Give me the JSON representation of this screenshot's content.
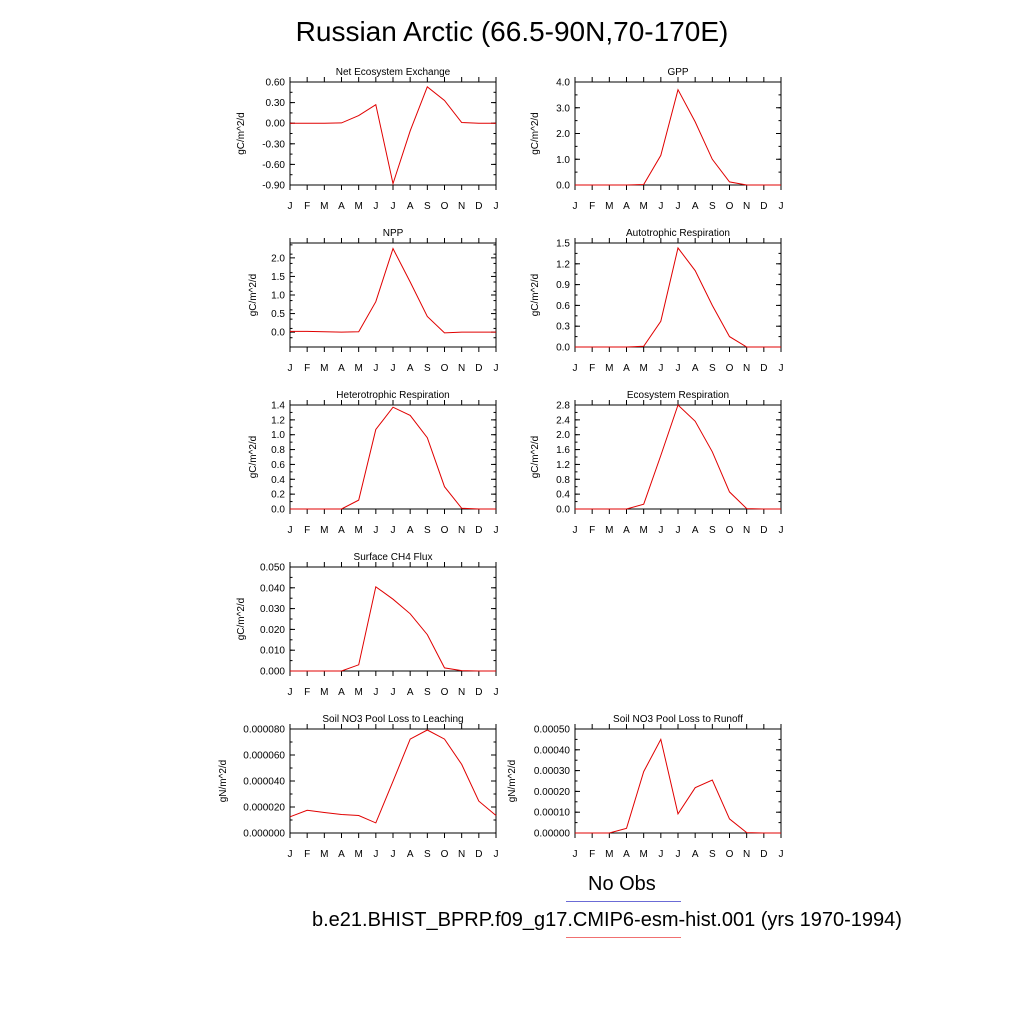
{
  "page_title": "Russian Arctic (66.5-90N,70-170E)",
  "months": [
    "J",
    "F",
    "M",
    "A",
    "M",
    "J",
    "J",
    "A",
    "S",
    "O",
    "N",
    "D",
    "J"
  ],
  "legend": {
    "items": [
      {
        "label": "No Obs",
        "color": "#6b6bd6"
      },
      {
        "label": "b.e21.BHIST_BPRP.f09_g17.CMIP6-esm-hist.001 (yrs 1970-1994)",
        "color": "#f07070"
      }
    ]
  },
  "line_color": "#e00000",
  "chart_data": [
    {
      "type": "line",
      "title": "Net Ecosystem Exchange",
      "ylabel": "gC/m^2/d",
      "ylim": [
        -0.9,
        0.6
      ],
      "yticks": [
        "0.60",
        "0.30",
        "0.00",
        "-0.30",
        "-0.60",
        "-0.90"
      ],
      "ytick_values": [
        0.6,
        0.3,
        0.0,
        -0.3,
        -0.6,
        -0.9
      ],
      "values": [
        0.0,
        0.0,
        0.0,
        0.005,
        0.11,
        0.27,
        -0.88,
        -0.11,
        0.53,
        0.33,
        0.01,
        0.0,
        0.0
      ]
    },
    {
      "type": "line",
      "title": "GPP",
      "ylabel": "gC/m^2/d",
      "ylim": [
        0,
        4.0
      ],
      "yticks": [
        "4.0",
        "3.0",
        "2.0",
        "1.0",
        "0.0"
      ],
      "ytick_values": [
        4.0,
        3.0,
        2.0,
        1.0,
        0.0
      ],
      "values": [
        0,
        0,
        0,
        0,
        0.02,
        1.15,
        3.7,
        2.45,
        1.0,
        0.12,
        0,
        0,
        0
      ]
    },
    {
      "type": "line",
      "title": "NPP",
      "ylabel": "gC/m^2/d",
      "ylim": [
        -0.4,
        2.4
      ],
      "yticks": [
        "2.0",
        "1.5",
        "1.0",
        "0.5",
        "0.0"
      ],
      "ytick_values": [
        2.0,
        1.5,
        1.0,
        0.5,
        0.0
      ],
      "values": [
        0.02,
        0.02,
        0.01,
        0.0,
        0.01,
        0.82,
        2.25,
        1.35,
        0.42,
        -0.02,
        0.0,
        0.0,
        0.0
      ]
    },
    {
      "type": "line",
      "title": "Autotrophic Respiration",
      "ylabel": "gC/m^2/d",
      "ylim": [
        0,
        1.5
      ],
      "yticks": [
        "1.5",
        "1.2",
        "0.9",
        "0.6",
        "0.3",
        "0.0"
      ],
      "ytick_values": [
        1.5,
        1.2,
        0.9,
        0.6,
        0.3,
        0.0
      ],
      "values": [
        0,
        0,
        0,
        0,
        0.01,
        0.37,
        1.43,
        1.1,
        0.6,
        0.15,
        0,
        0,
        0
      ]
    },
    {
      "type": "line",
      "title": "Heterotrophic Respiration",
      "ylabel": "gC/m^2/d",
      "ylim": [
        0,
        1.4
      ],
      "yticks": [
        "1.4",
        "1.2",
        "1.0",
        "0.8",
        "0.6",
        "0.4",
        "0.2",
        "0.0"
      ],
      "ytick_values": [
        1.4,
        1.2,
        1.0,
        0.8,
        0.6,
        0.4,
        0.2,
        0.0
      ],
      "values": [
        0,
        0,
        0,
        0,
        0.12,
        1.07,
        1.37,
        1.26,
        0.96,
        0.3,
        0.01,
        0,
        0
      ]
    },
    {
      "type": "line",
      "title": "Ecosystem Respiration",
      "ylabel": "gC/m^2/d",
      "ylim": [
        0,
        2.8
      ],
      "yticks": [
        "2.8",
        "2.4",
        "2.0",
        "1.6",
        "1.2",
        "0.8",
        "0.4",
        "0.0"
      ],
      "ytick_values": [
        2.8,
        2.4,
        2.0,
        1.6,
        1.2,
        0.8,
        0.4,
        0.0
      ],
      "values": [
        0,
        0,
        0,
        0,
        0.13,
        1.44,
        2.8,
        2.36,
        1.54,
        0.46,
        0.01,
        0,
        0
      ]
    },
    {
      "type": "line",
      "title": "Surface CH4 Flux",
      "ylabel": "gC/m^2/d",
      "ylim": [
        0,
        0.05
      ],
      "yticks": [
        "0.050",
        "0.040",
        "0.030",
        "0.020",
        "0.010",
        "0.000"
      ],
      "ytick_values": [
        0.05,
        0.04,
        0.03,
        0.02,
        0.01,
        0.0
      ],
      "values": [
        0,
        0,
        0,
        0,
        0.003,
        0.0405,
        0.0345,
        0.0275,
        0.0175,
        0.0015,
        0.0002,
        0,
        0
      ]
    },
    {
      "type": "line",
      "title": "Soil NO3 Pool Loss to Leaching",
      "ylabel": "gN/m^2/d",
      "ylim": [
        0,
        8e-05
      ],
      "yticks": [
        "0.000080",
        "0.000060",
        "0.000040",
        "0.000020",
        "0.000000"
      ],
      "ytick_values": [
        8e-05,
        6e-05,
        4e-05,
        2e-05,
        0.0
      ],
      "values": [
        1.25e-05,
        1.75e-05,
        1.58e-05,
        1.42e-05,
        1.35e-05,
        7.8e-06,
        3.98e-05,
        7.22e-05,
        7.92e-05,
        7.22e-05,
        5.28e-05,
        2.45e-05,
        1.35e-05
      ]
    },
    {
      "type": "line",
      "title": "Soil NO3 Pool Loss to Runoff",
      "ylabel": "gN/m^2/d",
      "ylim": [
        0,
        0.0005
      ],
      "yticks": [
        "0.00050",
        "0.00040",
        "0.00030",
        "0.00020",
        "0.00010",
        "0.00000"
      ],
      "ytick_values": [
        0.0005,
        0.0004,
        0.0003,
        0.0002,
        0.0001,
        0.0
      ],
      "values": [
        0,
        0,
        0,
        2.2e-05,
        0.000295,
        0.00045,
        9.2e-05,
        0.000218,
        0.000255,
        6.8e-05,
        2e-06,
        0,
        0
      ]
    }
  ]
}
